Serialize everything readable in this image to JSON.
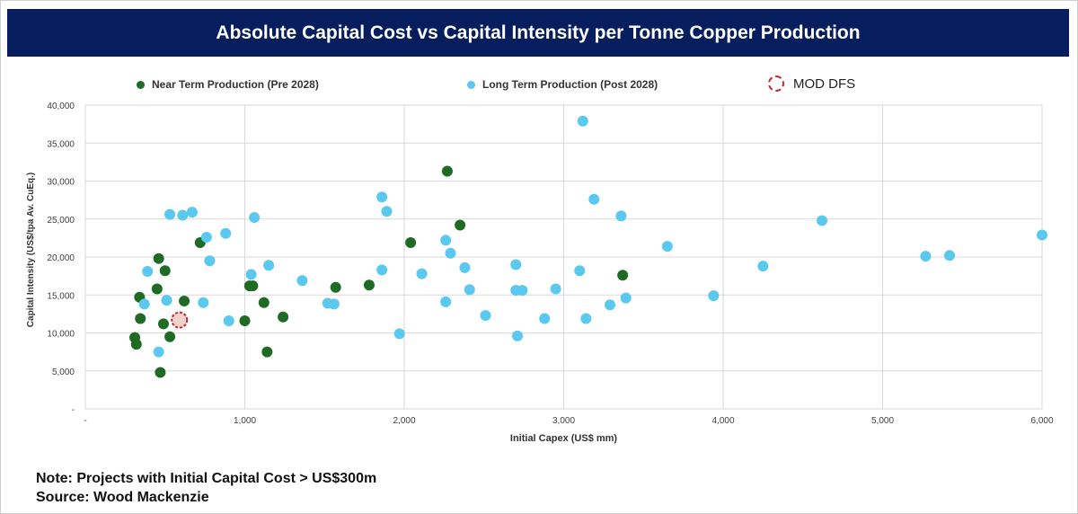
{
  "title": "Absolute Capital Cost vs Capital Intensity per Tonne Copper Production",
  "colors": {
    "title_bg": "#061E5E",
    "near_term": "#1F6B24",
    "long_term": "#5BC8EF",
    "mod_ring": "#C0282D",
    "mod_fill": "#F2D0CC",
    "grid": "#D9D9D9",
    "axis_text": "#404040"
  },
  "legend": {
    "near_term": "Near Term Production (Pre 2028)",
    "long_term": "Long Term Production (Post 2028)",
    "mod": "MOD DFS"
  },
  "notes": {
    "line1": "Note: Projects with Initial Capital Cost > US$300m",
    "line2": "Source: Wood Mackenzie"
  },
  "chart_data": {
    "type": "scatter",
    "xlabel": "Initial Capex (US$ mm)",
    "ylabel": "Capital Intensity (US$/tpa Av. CuEq.)",
    "xlim": [
      0,
      6000
    ],
    "ylim": [
      0,
      40000
    ],
    "x_ticks": [
      0,
      1000,
      2000,
      3000,
      4000,
      5000,
      6000
    ],
    "x_tick_labels": [
      "-",
      "1,000",
      "2,000",
      "3,000",
      "4,000",
      "5,000",
      "6,000"
    ],
    "y_ticks": [
      0,
      5000,
      10000,
      15000,
      20000,
      25000,
      30000,
      35000,
      40000
    ],
    "y_tick_labels": [
      "-",
      "5,000",
      "10,000",
      "15,000",
      "20,000",
      "25,000",
      "30,000",
      "35,000",
      "40,000"
    ],
    "grid": true,
    "legend_position": "top",
    "series": [
      {
        "name": "Near Term Production (Pre 2028)",
        "color": "#1F6B24",
        "points": [
          [
            310,
            9400
          ],
          [
            320,
            8500
          ],
          [
            340,
            14700
          ],
          [
            345,
            11900
          ],
          [
            460,
            19800
          ],
          [
            450,
            15800
          ],
          [
            500,
            18200
          ],
          [
            470,
            4800
          ],
          [
            490,
            11200
          ],
          [
            530,
            9500
          ],
          [
            620,
            14200
          ],
          [
            720,
            21900
          ],
          [
            1000,
            11600
          ],
          [
            1030,
            16200
          ],
          [
            1050,
            16200
          ],
          [
            1120,
            14000
          ],
          [
            1140,
            7500
          ],
          [
            1240,
            12100
          ],
          [
            1570,
            16000
          ],
          [
            1780,
            16300
          ],
          [
            2040,
            21900
          ],
          [
            2270,
            31300
          ],
          [
            2350,
            24200
          ],
          [
            3370,
            17600
          ]
        ]
      },
      {
        "name": "Long Term Production (Post 2028)",
        "color": "#5BC8EF",
        "points": [
          [
            370,
            13800
          ],
          [
            390,
            18100
          ],
          [
            460,
            7500
          ],
          [
            510,
            14300
          ],
          [
            530,
            25600
          ],
          [
            610,
            25500
          ],
          [
            670,
            25900
          ],
          [
            740,
            14000
          ],
          [
            760,
            22600
          ],
          [
            780,
            19500
          ],
          [
            880,
            23100
          ],
          [
            900,
            11600
          ],
          [
            1040,
            17700
          ],
          [
            1060,
            25200
          ],
          [
            1150,
            18900
          ],
          [
            1360,
            16900
          ],
          [
            1520,
            13900
          ],
          [
            1560,
            13800
          ],
          [
            1860,
            27900
          ],
          [
            1860,
            18300
          ],
          [
            1890,
            26000
          ],
          [
            1970,
            9900
          ],
          [
            2110,
            17800
          ],
          [
            2260,
            22200
          ],
          [
            2260,
            14100
          ],
          [
            2290,
            20500
          ],
          [
            2380,
            18600
          ],
          [
            2410,
            15700
          ],
          [
            2510,
            12300
          ],
          [
            2700,
            19000
          ],
          [
            2700,
            15600
          ],
          [
            2710,
            9600
          ],
          [
            2740,
            15600
          ],
          [
            2880,
            11900
          ],
          [
            2950,
            15800
          ],
          [
            3100,
            18200
          ],
          [
            3120,
            37900
          ],
          [
            3140,
            11900
          ],
          [
            3190,
            27600
          ],
          [
            3290,
            13700
          ],
          [
            3360,
            25400
          ],
          [
            3390,
            14600
          ],
          [
            3650,
            21400
          ],
          [
            3940,
            14900
          ],
          [
            4250,
            18800
          ],
          [
            4620,
            24800
          ],
          [
            5270,
            20100
          ],
          [
            5420,
            20200
          ],
          [
            6000,
            22900
          ]
        ]
      },
      {
        "name": "MOD DFS",
        "color": "#C0282D",
        "points": [
          [
            590,
            11700
          ]
        ]
      }
    ]
  }
}
